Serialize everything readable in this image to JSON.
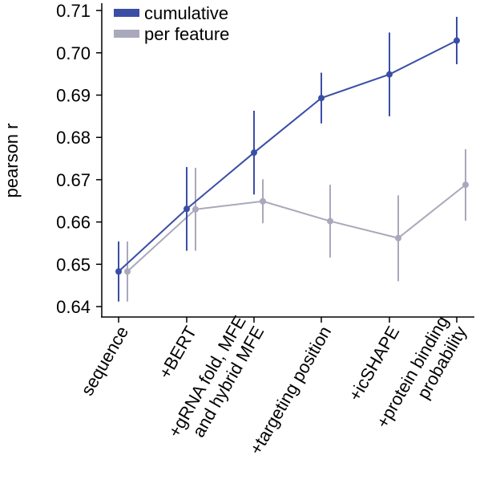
{
  "chart_data": {
    "type": "line",
    "title": "",
    "xlabel": "",
    "ylabel": "pearson r",
    "ylim": [
      0.638,
      0.712
    ],
    "yticks": [
      0.64,
      0.65,
      0.66,
      0.67,
      0.68,
      0.69,
      0.7,
      0.71
    ],
    "yticklabels": [
      "0.64",
      "0.65",
      "0.66",
      "0.67",
      "0.68",
      "0.69",
      "0.70",
      "0.71"
    ],
    "categories": [
      [
        "sequence"
      ],
      [
        "+BERT"
      ],
      [
        "+gRNA fold, MFE",
        "and hybrid MFE"
      ],
      [
        "+targeting position"
      ],
      [
        "+icSHAPE"
      ],
      [
        "+protein binding",
        "probability"
      ]
    ],
    "legend": {
      "position": "top-left"
    },
    "grid": false,
    "series": [
      {
        "name": "cumulative",
        "color": "#3a4ea6",
        "values": [
          0.6483,
          0.6631,
          0.6764,
          0.6893,
          0.6949,
          0.7029
        ],
        "error_low": [
          0.6412,
          0.6532,
          0.6665,
          0.6833,
          0.685,
          0.6973
        ],
        "error_high": [
          0.6554,
          0.673,
          0.6863,
          0.6953,
          0.7048,
          0.7085
        ]
      },
      {
        "name": "per feature",
        "color": "#a9a9bb",
        "values": [
          0.6483,
          0.663,
          0.6649,
          0.6602,
          0.6562,
          0.6688
        ],
        "error_low": [
          0.6412,
          0.6532,
          0.6597,
          0.6516,
          0.646,
          0.6603
        ],
        "error_high": [
          0.6554,
          0.6728,
          0.6701,
          0.6688,
          0.6663,
          0.6772
        ]
      }
    ]
  }
}
